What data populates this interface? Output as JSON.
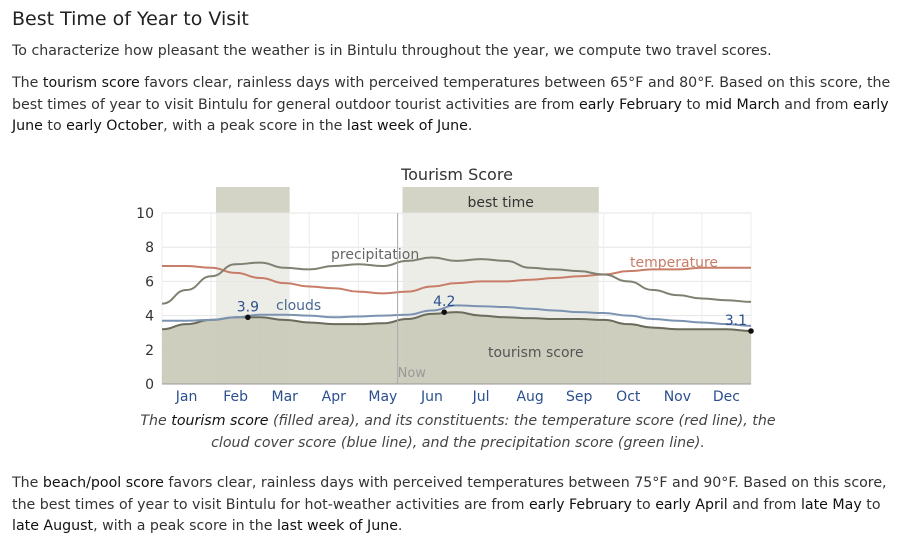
{
  "heading": "Best Time of Year to Visit",
  "intro": "To characterize how pleasant the weather is in Bintulu throughout the year, we compute two travel scores.",
  "tourism_para": {
    "t1": "The ",
    "h1": "tourism score",
    "t2": " favors clear, rainless days with perceived temperatures between 65°F and 80°F. Based on this score, the best times of year to visit Bintulu for general outdoor tourist activities are from ",
    "h2": "early February",
    "t3": " to ",
    "h3": "mid March",
    "t4": " and from ",
    "h4": "early June",
    "t5": " to ",
    "h5": "early October",
    "t6": ", with a peak score in the ",
    "h6": "last week of June",
    "t7": "."
  },
  "caption": {
    "t1": "The ",
    "h1": "tourism score",
    "t2": " (filled area), and its constituents: the temperature score (red line), the cloud cover score (blue line), and the precipitation score (green line)."
  },
  "beach_para": {
    "t1": "The ",
    "h1": "beach/pool score",
    "t2": " favors clear, rainless days with perceived temperatures between 75°F and 90°F. Based on this score, the best times of year to visit Bintulu for hot-weather activities are from ",
    "h2": "early February",
    "t3": " to ",
    "h3": "early April",
    "t4": " and from ",
    "h4": "late May",
    "t5": " to",
    "h5": "late August",
    "t6": ", with a peak score in the ",
    "h6": "last week of June",
    "t7": "."
  },
  "chart_data": {
    "type": "area",
    "title": "Tourism Score",
    "x_unit": "month",
    "xlim": [
      0,
      12
    ],
    "ylim": [
      0,
      10
    ],
    "yticks": [
      0,
      2,
      4,
      6,
      8,
      10
    ],
    "months": [
      "Jan",
      "Feb",
      "Mar",
      "Apr",
      "May",
      "Jun",
      "Jul",
      "Aug",
      "Sep",
      "Oct",
      "Nov",
      "Dec"
    ],
    "best_time_label": "best time",
    "best_time_ranges": [
      [
        1.1,
        2.6
      ],
      [
        4.9,
        8.9
      ]
    ],
    "now_label": "Now",
    "now_x": 4.8,
    "grid": true,
    "colors": {
      "tourism_fill": "#c9c9b8",
      "tourism_line": "#6b6b5b",
      "temperature": "#c87d68",
      "clouds": "#7b93b0",
      "precipitation": "#808072",
      "band": "#d8d8cc",
      "band_header": "#d3d3c6",
      "axis_text": "#2b4f8e"
    },
    "series": [
      {
        "name": "tourism score",
        "x": [
          0,
          0.5,
          1,
          1.5,
          2,
          2.5,
          3,
          3.5,
          4,
          4.5,
          5,
          5.5,
          6,
          6.5,
          7,
          7.5,
          8,
          8.5,
          9,
          9.5,
          10,
          10.5,
          11,
          11.5,
          12
        ],
        "values": [
          3.2,
          3.5,
          3.75,
          3.9,
          3.9,
          3.75,
          3.6,
          3.5,
          3.5,
          3.55,
          3.8,
          4.1,
          4.2,
          4.0,
          3.9,
          3.85,
          3.8,
          3.8,
          3.75,
          3.5,
          3.3,
          3.2,
          3.2,
          3.2,
          3.1
        ],
        "annotations": [
          {
            "x": 1.75,
            "y": 3.9,
            "label": "3.9"
          },
          {
            "x": 5.75,
            "y": 4.2,
            "label": "4.2"
          },
          {
            "x": 12,
            "y": 3.1,
            "label": "3.1"
          }
        ]
      },
      {
        "name": "temperature",
        "x": [
          0,
          0.5,
          1,
          1.5,
          2,
          2.5,
          3,
          3.5,
          4,
          4.5,
          5,
          5.5,
          6,
          6.5,
          7,
          7.5,
          8,
          8.5,
          9,
          9.5,
          10,
          10.5,
          11,
          11.5,
          12
        ],
        "values": [
          6.9,
          6.9,
          6.8,
          6.5,
          6.2,
          5.9,
          5.7,
          5.6,
          5.4,
          5.3,
          5.4,
          5.7,
          5.9,
          6.0,
          6.0,
          6.1,
          6.2,
          6.3,
          6.4,
          6.6,
          6.7,
          6.7,
          6.8,
          6.8,
          6.8
        ]
      },
      {
        "name": "clouds",
        "x": [
          0,
          0.5,
          1,
          1.5,
          2,
          2.5,
          3,
          3.5,
          4,
          4.5,
          5,
          5.5,
          6,
          6.5,
          7,
          7.5,
          8,
          8.5,
          9,
          9.5,
          10,
          10.5,
          11,
          11.5,
          12
        ],
        "values": [
          3.7,
          3.7,
          3.75,
          3.9,
          4.05,
          4.05,
          4.0,
          3.9,
          3.95,
          4.0,
          4.05,
          4.3,
          4.6,
          4.55,
          4.5,
          4.4,
          4.3,
          4.2,
          4.15,
          4.0,
          3.8,
          3.7,
          3.6,
          3.5,
          3.4
        ]
      },
      {
        "name": "precipitation",
        "x": [
          0,
          0.5,
          1,
          1.5,
          2,
          2.5,
          3,
          3.5,
          4,
          4.5,
          5,
          5.5,
          6,
          6.5,
          7,
          7.5,
          8,
          8.5,
          9,
          9.5,
          10,
          10.5,
          11,
          11.5,
          12
        ],
        "values": [
          4.7,
          5.5,
          6.3,
          7.0,
          7.1,
          6.8,
          6.7,
          6.9,
          7.0,
          6.9,
          7.2,
          7.4,
          7.2,
          7.3,
          7.2,
          6.8,
          6.7,
          6.6,
          6.4,
          6.0,
          5.5,
          5.2,
          5.0,
          4.9,
          4.8
        ]
      }
    ]
  }
}
